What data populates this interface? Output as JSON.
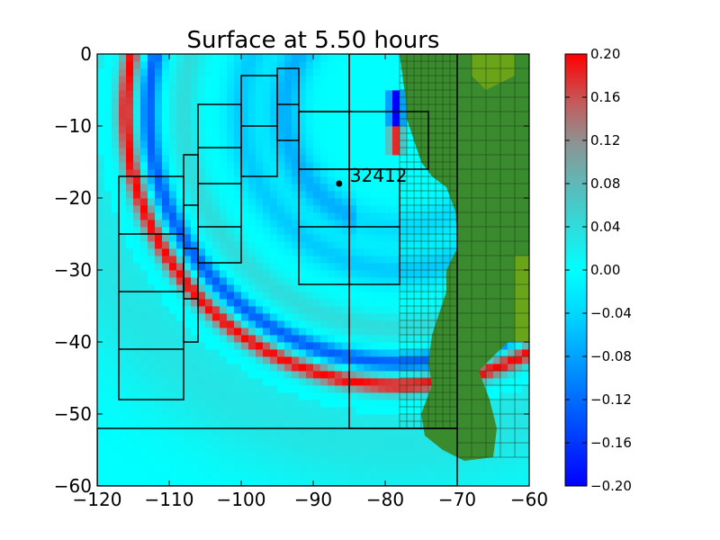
{
  "chart_data": {
    "type": "heatmap",
    "title": "Surface at 5.50 hours",
    "xlabel": "",
    "ylabel": "",
    "xlim": [
      -120,
      -60
    ],
    "ylim": [
      -60,
      0
    ],
    "x_ticks": [
      -120,
      -110,
      -100,
      -90,
      -80,
      -70,
      -60
    ],
    "y_ticks": [
      0,
      -10,
      -20,
      -30,
      -40,
      -50,
      -60
    ],
    "x_tick_labels": [
      "−120",
      "−110",
      "−100",
      "−90",
      "−80",
      "−70",
      "−60"
    ],
    "y_tick_labels": [
      "0",
      "−10",
      "−20",
      "−30",
      "−40",
      "−50",
      "−60"
    ],
    "colorbar": {
      "range": [
        -0.2,
        0.2
      ],
      "ticks": [
        0.2,
        0.16,
        0.12,
        0.08,
        0.04,
        0.0,
        -0.04,
        -0.08,
        -0.12,
        -0.16,
        -0.2
      ],
      "tick_labels": [
        "0.20",
        "0.16",
        "0.12",
        "0.08",
        "0.04",
        "0.00",
        "−0.04",
        "−0.08",
        "−0.12",
        "−0.16",
        "−0.20"
      ],
      "colors": [
        "#0000ff",
        "#00ffff",
        "#808080",
        "#ff0000"
      ]
    },
    "colors": {
      "water": "#00ffff",
      "land": "#3a8a2e",
      "land_light": "#6aa419",
      "grid": "#000000"
    },
    "wavefront": {
      "center": [
        -78,
        -8
      ],
      "outer_radius": 38,
      "crest_value": 0.2,
      "trough_value": -0.13
    },
    "gauge": {
      "label": "32412",
      "x": -86.4,
      "y": -18.0
    },
    "refinement_boxes": [
      [
        -117,
        -108,
        -48,
        -17
      ],
      [
        -108,
        -106,
        -40,
        -14
      ],
      [
        -106,
        -100,
        -29,
        -7
      ],
      [
        -100,
        -95,
        -17,
        -3
      ],
      [
        -95,
        -92,
        -12,
        -2
      ],
      [
        -92,
        -78,
        -32,
        -16
      ],
      [
        -92,
        -74,
        -16,
        -8
      ],
      [
        -85,
        -70,
        -52,
        0
      ],
      [
        -120,
        -70,
        -60,
        -52
      ]
    ],
    "grid_lines": {
      "x": [
        -116.75,
        -108.1,
        -106.1,
        -105.1,
        -100.4,
        -98.1,
        -95.4,
        -94.9,
        -87.4,
        -84.9,
        -77.9,
        -74.1,
        -69.9
      ],
      "y": [
        -17.5,
        -25.2,
        -33.2,
        -41.2,
        -48.2,
        -14.1,
        -21.2,
        -27.1,
        -34.1,
        -40.1,
        -7.1,
        -13.1,
        -18.1,
        -24.1,
        -29.1,
        -3.0,
        -10.1,
        -17.1,
        -2.0,
        -12.0,
        -7.0,
        -8.0,
        -15.9,
        -24.0,
        -32.0,
        -51.9
      ]
    }
  }
}
